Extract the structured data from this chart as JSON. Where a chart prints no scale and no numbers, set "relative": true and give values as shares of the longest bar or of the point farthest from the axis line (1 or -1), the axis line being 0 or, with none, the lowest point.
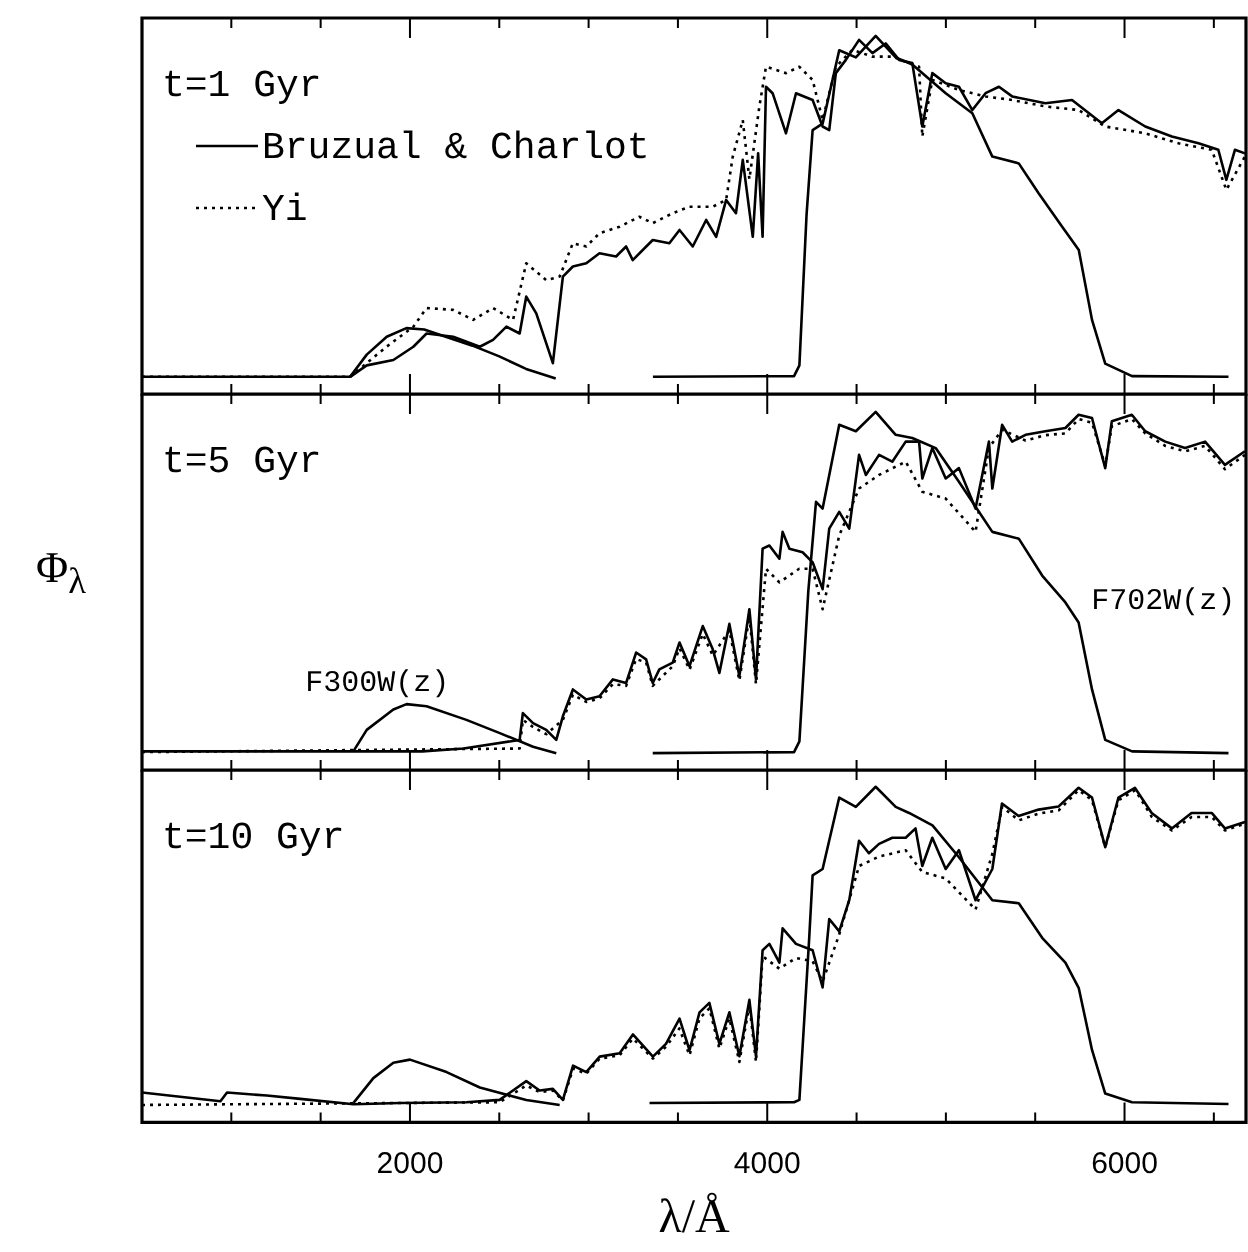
{
  "chart_data": [
    {
      "type": "line",
      "title": "t=1 Gyr",
      "legend": "top left",
      "tick_labels": false,
      "relative": true,
      "marker": "none",
      "xlim": [
        500,
        6680
      ],
      "xticks": [
        {
          "value": 1000,
          "label": null
        },
        {
          "value": 1500,
          "label": null
        },
        2000,
        {
          "value": 2500,
          "label": null
        },
        {
          "value": 3000,
          "label": null
        },
        {
          "value": 3500,
          "label": null
        },
        4000,
        {
          "value": 4500,
          "label": null
        },
        {
          "value": 5000,
          "label": null
        },
        {
          "value": 5500,
          "label": null
        },
        6000,
        {
          "value": 6500,
          "label": null
        }
      ],
      "series": [
        {
          "name": "Bruzual & Charlot",
          "color": "#000000",
          "line_style": "solid",
          "x": [
            500,
            1665,
            1758,
            1907,
            2019,
            2093,
            2242,
            2391,
            2465,
            2540,
            2614,
            2651,
            2707,
            2800,
            2856,
            2912,
            2987,
            3061,
            3154,
            3210,
            3247,
            3359,
            3452,
            3509,
            3583,
            3658,
            3714,
            3770,
            3825,
            3863,
            3919,
            3949,
            3974,
            3993,
            4030,
            4105,
            4161,
            4254,
            4310,
            4347,
            4384,
            4440,
            4514,
            4589,
            4663,
            4738,
            4812,
            4868,
            4924,
            4999,
            5073,
            5148,
            5222,
            5297,
            5371,
            5557,
            5706,
            5873,
            5966,
            6116,
            6265,
            6414,
            6525,
            6570,
            6618,
            6674
          ],
          "values": [
            0.048,
            0.048,
            0.08,
            0.095,
            0.132,
            0.169,
            0.16,
            0.132,
            0.151,
            0.188,
            0.169,
            0.272,
            0.225,
            0.086,
            0.328,
            0.356,
            0.365,
            0.393,
            0.384,
            0.412,
            0.374,
            0.43,
            0.421,
            0.458,
            0.412,
            0.486,
            0.439,
            0.542,
            0.505,
            0.654,
            0.439,
            0.672,
            0.439,
            0.858,
            0.84,
            0.728,
            0.84,
            0.821,
            0.747,
            0.737,
            0.896,
            0.933,
            0.989,
            0.952,
            0.979,
            0.933,
            0.924,
            0.747,
            0.896,
            0.868,
            0.858,
            0.793,
            0.84,
            0.858,
            0.831,
            0.812,
            0.821,
            0.756,
            0.793,
            0.747,
            0.719,
            0.7,
            0.682,
            0.598,
            0.682,
            0.672
          ]
        },
        {
          "name": "Yi",
          "color": "#000000",
          "line_style": "dotted",
          "x": [
            500,
            1665,
            1869,
            2019,
            2093,
            2242,
            2354,
            2465,
            2577,
            2651,
            2763,
            2838,
            2912,
            2987,
            3061,
            3173,
            3284,
            3359,
            3471,
            3564,
            3695,
            3770,
            3807,
            3863,
            3900,
            3956,
            3993,
            4105,
            4179,
            4254,
            4310,
            4384,
            4477,
            4589,
            4700,
            4850,
            4868,
            4924,
            5073,
            5222,
            5371,
            5557,
            5743,
            5892,
            6116,
            6302,
            6488,
            6570,
            6674
          ],
          "values": [
            0.048,
            0.048,
            0.132,
            0.188,
            0.24,
            0.235,
            0.207,
            0.24,
            0.207,
            0.365,
            0.318,
            0.328,
            0.421,
            0.412,
            0.449,
            0.467,
            0.495,
            0.477,
            0.505,
            0.523,
            0.523,
            0.542,
            0.663,
            0.765,
            0.6,
            0.803,
            0.914,
            0.896,
            0.914,
            0.877,
            0.765,
            0.914,
            0.961,
            0.942,
            0.942,
            0.914,
            0.719,
            0.877,
            0.849,
            0.831,
            0.821,
            0.803,
            0.793,
            0.747,
            0.728,
            0.7,
            0.682,
            0.57,
            0.663
          ]
        },
        {
          "color": "#000000",
          "line_style": "solid",
          "x": [
            1665,
            1758,
            1870,
            1980,
            2080,
            2200,
            2350,
            2500,
            2650,
            2816
          ],
          "values": [
            0.048,
            0.11,
            0.16,
            0.184,
            0.18,
            0.16,
            0.135,
            0.105,
            0.07,
            0.043
          ]
        },
        {
          "color": "#000000",
          "line_style": "solid",
          "x": [
            3360,
            4150,
            4180,
            4220,
            4254,
            4310,
            4403,
            4496,
            4607,
            4719,
            4812,
            4999,
            5148,
            5260,
            5408,
            5520,
            5651,
            5744,
            5818,
            5892,
            6042,
            6582
          ],
          "values": [
            0.048,
            0.05,
            0.08,
            0.5,
            0.737,
            0.755,
            0.96,
            0.94,
            1.0,
            0.94,
            0.92,
            0.84,
            0.784,
            0.663,
            0.644,
            0.56,
            0.467,
            0.402,
            0.207,
            0.085,
            0.05,
            0.048
          ]
        }
      ]
    },
    {
      "type": "line",
      "title": "t=5 Gyr",
      "ylabel": "Φ$_{λ}$",
      "tick_labels": false,
      "relative": true,
      "marker": "none",
      "xlim": [
        500,
        6680
      ],
      "xticks": [
        {
          "value": 1000,
          "label": null
        },
        {
          "value": 1500,
          "label": null
        },
        2000,
        {
          "value": 2500,
          "label": null
        },
        {
          "value": 3000,
          "label": null
        },
        {
          "value": 3500,
          "label": null
        },
        4000,
        {
          "value": 4500,
          "label": null
        },
        {
          "value": 5000,
          "label": null
        },
        {
          "value": 5500,
          "label": null
        },
        6000,
        {
          "value": 6500,
          "label": null
        }
      ],
      "annotations": [
        "F300W(z)",
        "F702W(z)"
      ],
      "series": [
        {
          "color": "#000000",
          "line_style": "solid",
          "x": [
            500,
            2070,
            2300,
            2614,
            2632,
            2689,
            2763,
            2819,
            2856,
            2912,
            2987,
            3061,
            3136,
            3210,
            3266,
            3322,
            3359,
            3396,
            3471,
            3509,
            3565,
            3639,
            3695,
            3732,
            3788,
            3844,
            3900,
            3937,
            3974,
            4012,
            4068,
            4086,
            4124,
            4198,
            4254,
            4310,
            4347,
            4403,
            4459,
            4514,
            4552,
            4626,
            4700,
            4775,
            4850,
            4868,
            4924,
            4999,
            5073,
            5166,
            5241,
            5260,
            5315,
            5371,
            5446,
            5557,
            5669,
            5743,
            5818,
            5892,
            5929,
            6041,
            6116,
            6228,
            6339,
            6451,
            6562,
            6674
          ],
          "values": [
            0.052,
            0.052,
            0.06,
            0.084,
            0.159,
            0.131,
            0.112,
            0.084,
            0.15,
            0.225,
            0.197,
            0.206,
            0.253,
            0.243,
            0.328,
            0.309,
            0.243,
            0.281,
            0.3,
            0.356,
            0.29,
            0.402,
            0.337,
            0.271,
            0.408,
            0.262,
            0.449,
            0.253,
            0.618,
            0.627,
            0.59,
            0.665,
            0.618,
            0.608,
            0.58,
            0.505,
            0.674,
            0.721,
            0.674,
            0.88,
            0.824,
            0.88,
            0.861,
            0.917,
            0.917,
            0.814,
            0.899,
            0.814,
            0.843,
            0.73,
            0.917,
            0.786,
            0.964,
            0.917,
            0.936,
            0.946,
            0.955,
            0.992,
            0.983,
            0.843,
            0.974,
            0.992,
            0.946,
            0.917,
            0.899,
            0.917,
            0.852,
            0.89
          ]
        },
        {
          "color": "#000000",
          "line_style": "dotted",
          "x": [
            500,
            2614,
            2632,
            2689,
            2763,
            2856,
            2912,
            2987,
            3061,
            3136,
            3210,
            3266,
            3322,
            3359,
            3471,
            3509,
            3565,
            3639,
            3695,
            3788,
            3844,
            3900,
            3937,
            3993,
            4068,
            4179,
            4254,
            4310,
            4403,
            4514,
            4626,
            4775,
            4868,
            4999,
            5166,
            5241,
            5315,
            5446,
            5557,
            5669,
            5743,
            5818,
            5892,
            5929,
            6041,
            6116,
            6228,
            6339,
            6451,
            6562,
            6674
          ],
          "values": [
            0.05,
            0.06,
            0.14,
            0.12,
            0.1,
            0.14,
            0.21,
            0.19,
            0.2,
            0.24,
            0.235,
            0.31,
            0.3,
            0.235,
            0.29,
            0.34,
            0.28,
            0.38,
            0.32,
            0.39,
            0.25,
            0.43,
            0.24,
            0.562,
            0.524,
            0.562,
            0.562,
            0.449,
            0.655,
            0.786,
            0.824,
            0.861,
            0.777,
            0.758,
            0.665,
            0.9,
            0.95,
            0.92,
            0.935,
            0.94,
            0.98,
            0.97,
            0.85,
            0.96,
            0.98,
            0.94,
            0.905,
            0.89,
            0.905,
            0.84,
            0.88
          ]
        },
        {
          "color": "#000000",
          "line_style": "solid",
          "x": [
            1683,
            1758,
            1907,
            1981,
            2093,
            2316,
            2503,
            2689,
            2819
          ],
          "values": [
            0.052,
            0.112,
            0.169,
            0.184,
            0.178,
            0.14,
            0.103,
            0.065,
            0.047
          ]
        },
        {
          "color": "#000000",
          "line_style": "solid",
          "x": [
            3359,
            4150,
            4180,
            4230,
            4273,
            4310,
            4403,
            4496,
            4607,
            4719,
            4812,
            4943,
            5073,
            5260,
            5408,
            5539,
            5669,
            5743,
            5818,
            5892,
            6042,
            6582
          ],
          "values": [
            0.047,
            0.05,
            0.08,
            0.5,
            0.749,
            0.73,
            0.964,
            0.946,
            1.0,
            0.936,
            0.927,
            0.899,
            0.805,
            0.665,
            0.646,
            0.543,
            0.468,
            0.412,
            0.225,
            0.084,
            0.052,
            0.047
          ]
        }
      ]
    },
    {
      "type": "line",
      "title": "t=10 Gyr",
      "xlabel": "λ/Å",
      "tick_labels": "x",
      "relative": true,
      "marker": "none",
      "xlim": [
        500,
        6680
      ],
      "xticks": [
        {
          "value": 1000,
          "label": null
        },
        {
          "value": 1500,
          "label": null
        },
        2000,
        {
          "value": 2500,
          "label": null
        },
        {
          "value": 3000,
          "label": null
        },
        {
          "value": 3500,
          "label": null
        },
        4000,
        {
          "value": 4500,
          "label": null
        },
        {
          "value": 5000,
          "label": null
        },
        {
          "value": 5500,
          "label": null
        },
        6000,
        {
          "value": 6500,
          "label": null
        }
      ],
      "series": [
        {
          "color": "#000000",
          "line_style": "solid",
          "x": [
            500,
            939,
            976,
            1199,
            1386,
            1684,
            1944,
            2316,
            2502,
            2651,
            2726,
            2800,
            2856,
            2913,
            2987,
            3062,
            3174,
            3248,
            3360,
            3433,
            3509,
            3565,
            3621,
            3676,
            3732,
            3788,
            3844,
            3900,
            3937,
            3974,
            4012,
            4068,
            4086,
            4161,
            4254,
            4310,
            4347,
            4403,
            4459,
            4514,
            4569,
            4626,
            4700,
            4775,
            4830,
            4868,
            4924,
            4999,
            5073,
            5166,
            5260,
            5314,
            5407,
            5519,
            5630,
            5743,
            5818,
            5892,
            5966,
            6058,
            6152,
            6265,
            6375,
            6488,
            6562,
            6674
          ],
          "values": [
            0.089,
            0.063,
            0.089,
            0.08,
            0.07,
            0.054,
            0.058,
            0.06,
            0.067,
            0.123,
            0.095,
            0.1,
            0.067,
            0.169,
            0.15,
            0.196,
            0.206,
            0.262,
            0.196,
            0.234,
            0.309,
            0.215,
            0.328,
            0.356,
            0.234,
            0.328,
            0.197,
            0.365,
            0.197,
            0.513,
            0.532,
            0.476,
            0.578,
            0.532,
            0.513,
            0.402,
            0.606,
            0.569,
            0.662,
            0.839,
            0.802,
            0.83,
            0.848,
            0.848,
            0.876,
            0.764,
            0.848,
            0.755,
            0.811,
            0.662,
            0.755,
            0.95,
            0.913,
            0.932,
            0.941,
            0.997,
            0.968,
            0.82,
            0.968,
            0.997,
            0.922,
            0.876,
            0.922,
            0.922,
            0.876,
            0.895
          ]
        },
        {
          "color": "#000000",
          "line_style": "dotted",
          "x": [
            500,
            2502,
            2651,
            2726,
            2800,
            2856,
            2913,
            2987,
            3062,
            3174,
            3248,
            3360,
            3433,
            3508,
            3565,
            3621,
            3676,
            3732,
            3788,
            3844,
            3900,
            3937,
            3974,
            4068,
            4161,
            4254,
            4310,
            4403,
            4514,
            4626,
            4775,
            4868,
            4999,
            5166,
            5260,
            5315,
            5408,
            5520,
            5632,
            5743,
            5818,
            5892,
            5966,
            6060,
            6153,
            6265,
            6376,
            6488,
            6562,
            6674
          ],
          "values": [
            0.052,
            0.06,
            0.11,
            0.09,
            0.095,
            0.065,
            0.16,
            0.145,
            0.19,
            0.2,
            0.25,
            0.19,
            0.225,
            0.28,
            0.2,
            0.31,
            0.34,
            0.22,
            0.31,
            0.18,
            0.35,
            0.18,
            0.495,
            0.458,
            0.49,
            0.48,
            0.42,
            0.56,
            0.764,
            0.792,
            0.811,
            0.746,
            0.727,
            0.634,
            0.8,
            0.94,
            0.9,
            0.92,
            0.93,
            0.99,
            0.96,
            0.82,
            0.96,
            0.99,
            0.91,
            0.87,
            0.91,
            0.91,
            0.87,
            0.89
          ]
        },
        {
          "color": "#000000",
          "line_style": "solid",
          "x": [
            1684,
            1795,
            1907,
            2000,
            2205,
            2391,
            2651,
            2838
          ],
          "values": [
            0.058,
            0.132,
            0.178,
            0.187,
            0.15,
            0.104,
            0.067,
            0.052
          ]
        },
        {
          "color": "#000000",
          "line_style": "solid",
          "x": [
            3341,
            4150,
            4180,
            4235,
            4254,
            4310,
            4403,
            4496,
            4607,
            4719,
            4794,
            4925,
            5073,
            5260,
            5408,
            5539,
            5669,
            5744,
            5818,
            5892,
            6042,
            6582
          ],
          "values": [
            0.058,
            0.06,
            0.067,
            0.55,
            0.736,
            0.755,
            0.968,
            0.94,
            1.0,
            0.94,
            0.922,
            0.885,
            0.79,
            0.662,
            0.653,
            0.55,
            0.476,
            0.4,
            0.216,
            0.086,
            0.06,
            0.055
          ]
        }
      ]
    }
  ]
}
